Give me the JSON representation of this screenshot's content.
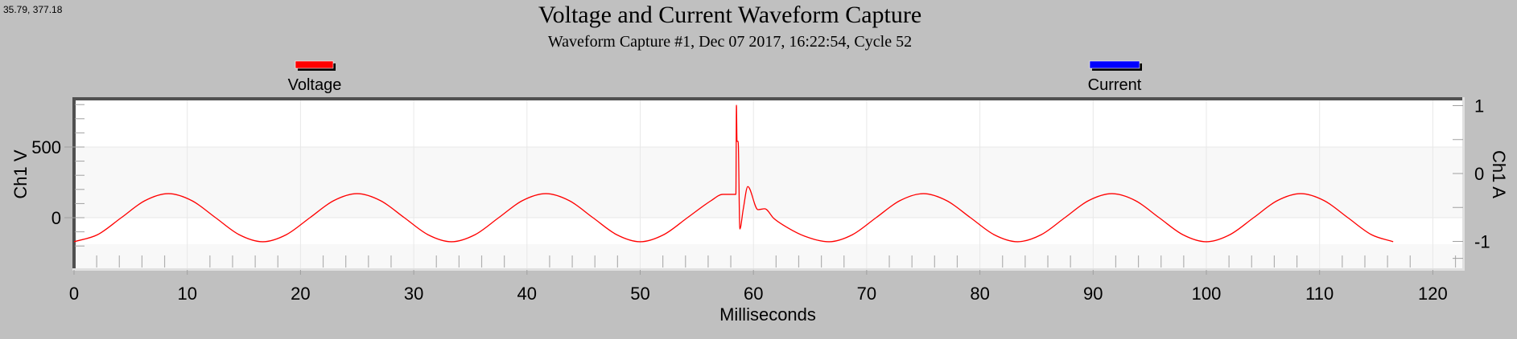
{
  "cursor_readout": "35.79, 377.18",
  "colors": {
    "background": "#c0c0c0",
    "voltage": "#ff0000",
    "current": "#0000ff",
    "frame": "#505050"
  },
  "chart_data": {
    "type": "line",
    "title": "Voltage and Current Waveform Capture",
    "subtitle": "Waveform Capture #1, Dec 07 2017, 16:22:54,  Cycle 52",
    "xlabel": "Milliseconds",
    "ylabel_left": "Ch1 V",
    "ylabel_right": "Ch1 A",
    "xlim": [
      0,
      123
    ],
    "ylim_left": [
      -350,
      835
    ],
    "ylim_right": [
      -1.38,
      1.09
    ],
    "x_ticks": [
      "0",
      "10",
      "20",
      "30",
      "40",
      "50",
      "60",
      "70",
      "80",
      "90",
      "100",
      "110",
      "120"
    ],
    "y_left_ticks": [
      "0",
      "500"
    ],
    "y_right_ticks": [
      "1",
      "0",
      "-1"
    ],
    "grid": true,
    "legend": {
      "placement": "top",
      "entries": [
        "Voltage",
        "Current"
      ]
    },
    "series": [
      {
        "name": "Voltage",
        "axis": "left",
        "color": "#ff0000",
        "x": [
          0,
          2.08,
          4.17,
          6.25,
          8.33,
          10.42,
          12.5,
          14.58,
          16.67,
          18.75,
          20.83,
          22.92,
          25,
          27.08,
          29.17,
          31.25,
          33.33,
          35.42,
          37.5,
          39.58,
          41.67,
          43.75,
          45.83,
          47.92,
          50,
          52.08,
          54.17,
          56.25,
          57.3,
          58.3,
          58.45,
          58.5,
          58.55,
          58.65,
          58.8,
          59.1,
          59.5,
          60.4,
          61.0,
          61.8,
          63.0,
          64.5,
          66.67,
          68.75,
          70.83,
          72.92,
          75,
          77.08,
          79.17,
          81.25,
          83.33,
          85.42,
          87.5,
          89.58,
          91.67,
          93.75,
          95.83,
          97.92,
          100,
          102.08,
          104.17,
          106.25,
          108.33,
          110.42,
          112.5,
          114.58,
          116.5
        ],
        "y": [
          -170,
          -120,
          0,
          120,
          170,
          120,
          0,
          -120,
          -170,
          -120,
          0,
          120,
          170,
          120,
          0,
          -120,
          -170,
          -120,
          0,
          120,
          170,
          120,
          0,
          -120,
          -170,
          -120,
          0,
          120,
          165,
          165,
          165,
          795,
          540,
          540,
          -80,
          60,
          220,
          57,
          63,
          -5,
          -70,
          -130,
          -170,
          -120,
          0,
          120,
          170,
          120,
          0,
          -120,
          -170,
          -120,
          0,
          120,
          170,
          120,
          0,
          -120,
          -170,
          -120,
          0,
          120,
          170,
          120,
          0,
          -120,
          -170
        ]
      },
      {
        "name": "Current",
        "axis": "right",
        "color": "#0000ff",
        "x": [],
        "y": []
      }
    ]
  }
}
